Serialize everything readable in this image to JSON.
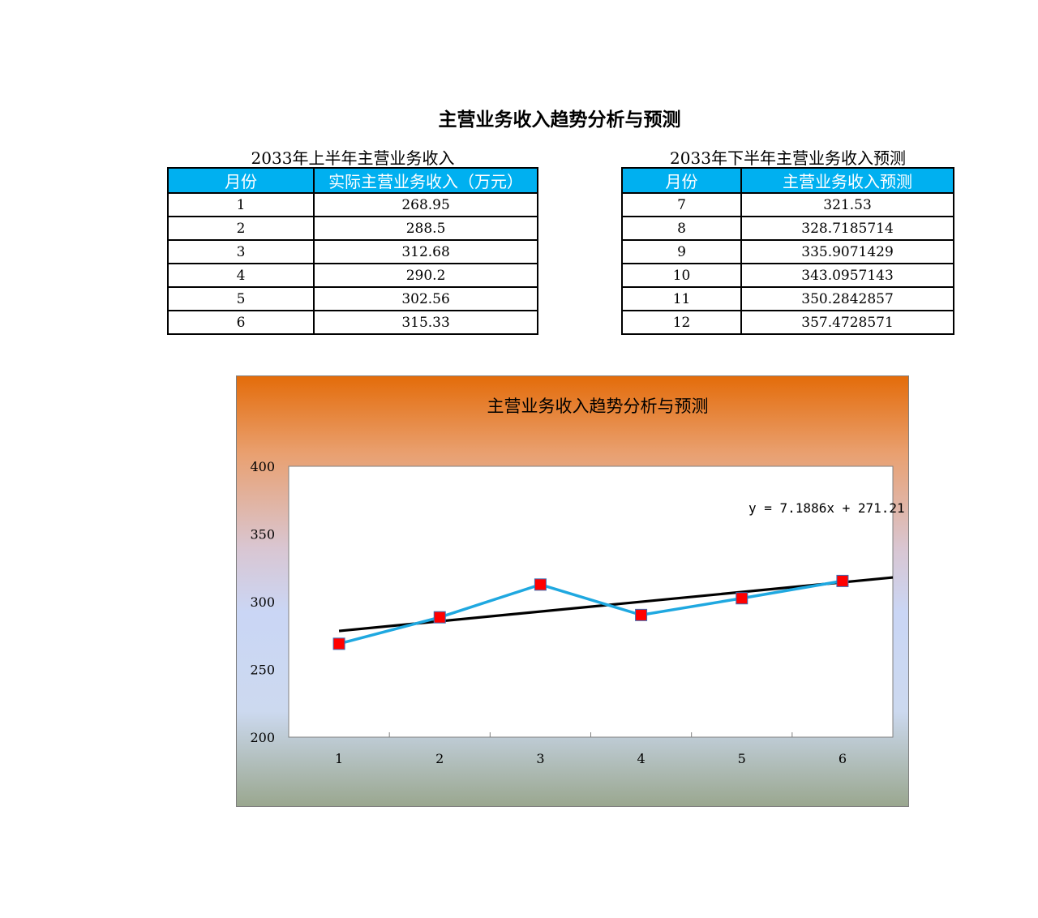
{
  "page_title": "主营业务收入趋势分析与预测",
  "table1": {
    "caption": "2033年上半年主营业务收入",
    "headers": [
      "月份",
      "实际主营业务收入（万元）"
    ],
    "rows": [
      [
        "1",
        "268.95"
      ],
      [
        "2",
        "288.5"
      ],
      [
        "3",
        "312.68"
      ],
      [
        "4",
        "290.2"
      ],
      [
        "5",
        "302.56"
      ],
      [
        "6",
        "315.33"
      ]
    ]
  },
  "table2": {
    "caption": "2033年下半年主营业务收入预测",
    "headers": [
      "月份",
      "主营业务收入预测"
    ],
    "rows": [
      [
        "7",
        "321.53"
      ],
      [
        "8",
        "328.7185714"
      ],
      [
        "9",
        "335.9071429"
      ],
      [
        "10",
        "343.0957143"
      ],
      [
        "11",
        "350.2842857"
      ],
      [
        "12",
        "357.4728571"
      ]
    ]
  },
  "chart_data": {
    "type": "line",
    "title": "主营业务收入趋势分析与预测",
    "categories": [
      "1",
      "2",
      "3",
      "4",
      "5",
      "6"
    ],
    "series": [
      {
        "values": [
          268.95,
          288.5,
          312.68,
          290.2,
          302.56,
          315.33
        ],
        "color": "#1fa8e0",
        "marker_color": "#ff0000"
      }
    ],
    "trendline": {
      "slope": 7.1886,
      "intercept": 271.21,
      "label": "y = 7.1886x + 271.21",
      "color": "#000000"
    },
    "ylim": [
      200,
      400
    ],
    "yticks": [
      "200",
      "250",
      "300",
      "350",
      "400"
    ],
    "xlabel": "",
    "ylabel": "",
    "legend": "none"
  }
}
